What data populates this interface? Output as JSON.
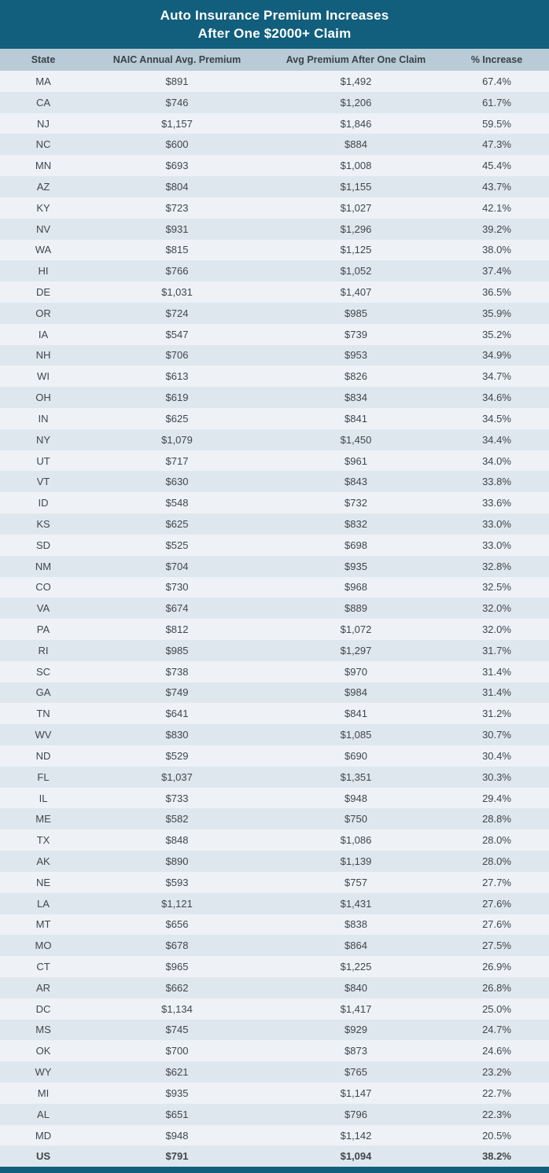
{
  "title": {
    "line1": "Auto Insurance Premium Increases",
    "line2": "After One $2000+ Claim"
  },
  "colors": {
    "accent_teal": "#115e7d",
    "header_bg": "#b9cbd7",
    "row_light": "#eef2f6",
    "row_dark": "#dfe7ee",
    "text": "#3f464c"
  },
  "chart_data": {
    "type": "table",
    "title": "Auto Insurance Premium Increases After One $2000+ Claim",
    "columns": [
      "State",
      "NAIC Annual Avg. Premium",
      "Avg Premium After One Claim",
      "% Increase"
    ],
    "rows": [
      [
        "MA",
        "$891",
        "$1,492",
        "67.4%"
      ],
      [
        "CA",
        "$746",
        "$1,206",
        "61.7%"
      ],
      [
        "NJ",
        "$1,157",
        "$1,846",
        "59.5%"
      ],
      [
        "NC",
        "$600",
        "$884",
        "47.3%"
      ],
      [
        "MN",
        "$693",
        "$1,008",
        "45.4%"
      ],
      [
        "AZ",
        "$804",
        "$1,155",
        "43.7%"
      ],
      [
        "KY",
        "$723",
        "$1,027",
        "42.1%"
      ],
      [
        "NV",
        "$931",
        "$1,296",
        "39.2%"
      ],
      [
        "WA",
        "$815",
        "$1,125",
        "38.0%"
      ],
      [
        "HI",
        "$766",
        "$1,052",
        "37.4%"
      ],
      [
        "DE",
        "$1,031",
        "$1,407",
        "36.5%"
      ],
      [
        "OR",
        "$724",
        "$985",
        "35.9%"
      ],
      [
        "IA",
        "$547",
        "$739",
        "35.2%"
      ],
      [
        "NH",
        "$706",
        "$953",
        "34.9%"
      ],
      [
        "WI",
        "$613",
        "$826",
        "34.7%"
      ],
      [
        "OH",
        "$619",
        "$834",
        "34.6%"
      ],
      [
        "IN",
        "$625",
        "$841",
        "34.5%"
      ],
      [
        "NY",
        "$1,079",
        "$1,450",
        "34.4%"
      ],
      [
        "UT",
        "$717",
        "$961",
        "34.0%"
      ],
      [
        "VT",
        "$630",
        "$843",
        "33.8%"
      ],
      [
        "ID",
        "$548",
        "$732",
        "33.6%"
      ],
      [
        "KS",
        "$625",
        "$832",
        "33.0%"
      ],
      [
        "SD",
        "$525",
        "$698",
        "33.0%"
      ],
      [
        "NM",
        "$704",
        "$935",
        "32.8%"
      ],
      [
        "CO",
        "$730",
        "$968",
        "32.5%"
      ],
      [
        "VA",
        "$674",
        "$889",
        "32.0%"
      ],
      [
        "PA",
        "$812",
        "$1,072",
        "32.0%"
      ],
      [
        "RI",
        "$985",
        "$1,297",
        "31.7%"
      ],
      [
        "SC",
        "$738",
        "$970",
        "31.4%"
      ],
      [
        "GA",
        "$749",
        "$984",
        "31.4%"
      ],
      [
        "TN",
        "$641",
        "$841",
        "31.2%"
      ],
      [
        "WV",
        "$830",
        "$1,085",
        "30.7%"
      ],
      [
        "ND",
        "$529",
        "$690",
        "30.4%"
      ],
      [
        "FL",
        "$1,037",
        "$1,351",
        "30.3%"
      ],
      [
        "IL",
        "$733",
        "$948",
        "29.4%"
      ],
      [
        "ME",
        "$582",
        "$750",
        "28.8%"
      ],
      [
        "TX",
        "$848",
        "$1,086",
        "28.0%"
      ],
      [
        "AK",
        "$890",
        "$1,139",
        "28.0%"
      ],
      [
        "NE",
        "$593",
        "$757",
        "27.7%"
      ],
      [
        "LA",
        "$1,121",
        "$1,431",
        "27.6%"
      ],
      [
        "MT",
        "$656",
        "$838",
        "27.6%"
      ],
      [
        "MO",
        "$678",
        "$864",
        "27.5%"
      ],
      [
        "CT",
        "$965",
        "$1,225",
        "26.9%"
      ],
      [
        "AR",
        "$662",
        "$840",
        "26.8%"
      ],
      [
        "DC",
        "$1,134",
        "$1,417",
        "25.0%"
      ],
      [
        "MS",
        "$745",
        "$929",
        "24.7%"
      ],
      [
        "OK",
        "$700",
        "$873",
        "24.6%"
      ],
      [
        "WY",
        "$621",
        "$765",
        "23.2%"
      ],
      [
        "MI",
        "$935",
        "$1,147",
        "22.7%"
      ],
      [
        "AL",
        "$651",
        "$796",
        "22.3%"
      ],
      [
        "MD",
        "$948",
        "$1,142",
        "20.5%"
      ]
    ],
    "summary_row": [
      "US",
      "$791",
      "$1,094",
      "38.2%"
    ]
  }
}
